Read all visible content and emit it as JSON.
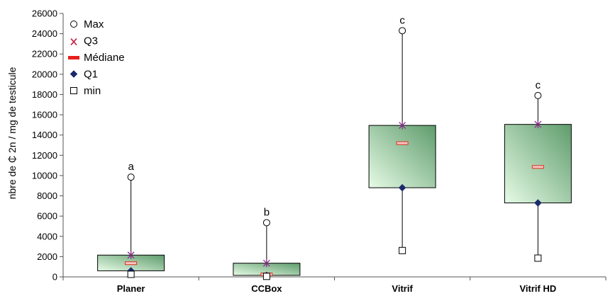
{
  "chart_data": {
    "type": "boxplot",
    "ylabel": "nbre de ₵ 2n / mg de testicule",
    "ylim": [
      0,
      26000
    ],
    "ytick_step": 2000,
    "categories": [
      "Planer",
      "CCBox",
      "Vitrif",
      "Vitrif HD"
    ],
    "letters": [
      "a",
      "b",
      "c",
      "c"
    ],
    "stats": [
      {
        "max": 9850,
        "q3": 2150,
        "median": 1350,
        "q1": 600,
        "min": 250
      },
      {
        "max": 5350,
        "q3": 1350,
        "median": 250,
        "q1": 150,
        "min": 50
      },
      {
        "max": 24300,
        "q3": 14950,
        "median": 13200,
        "q1": 8800,
        "min": 2600
      },
      {
        "max": 17900,
        "q3": 15050,
        "median": 10850,
        "q1": 7300,
        "min": 1850
      }
    ],
    "legend": {
      "position": "top-left",
      "items": [
        {
          "label": "Max",
          "marker": "circle"
        },
        {
          "label": "Q3",
          "marker": "star"
        },
        {
          "label": "Médiane",
          "marker": "dash"
        },
        {
          "label": "Q1",
          "marker": "diamond"
        },
        {
          "label": "min",
          "marker": "square"
        }
      ]
    },
    "colors": {
      "box_light": "#e6fbe6",
      "box_dark": "#5f9c6c",
      "q3_marker": "#8b2a8b",
      "q1_marker": "#1a2a6c",
      "median_fill": "#f2c8c8",
      "median_stroke": "#e0301e",
      "legend_dash": "#e8201c",
      "legend_star": "#c0183c",
      "axis": "#555555"
    },
    "grid": false
  }
}
